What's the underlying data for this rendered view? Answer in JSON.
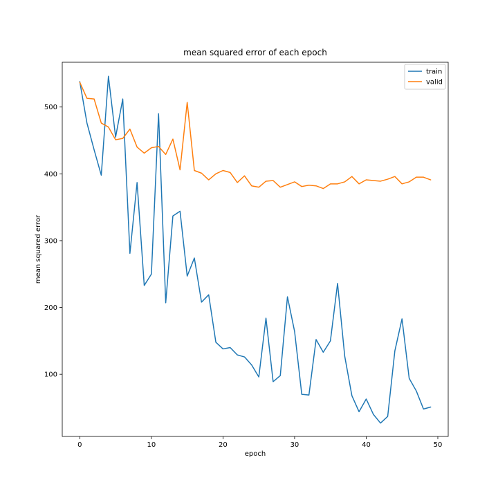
{
  "chart_data": {
    "type": "line",
    "title": "mean squared error of each epoch",
    "xlabel": "epoch",
    "ylabel": "mean squared error",
    "xlim": [
      -2.45,
      51.45
    ],
    "ylim": [
      7,
      567
    ],
    "xticks": [
      0,
      10,
      20,
      30,
      40,
      50
    ],
    "yticks": [
      100,
      200,
      300,
      400,
      500
    ],
    "grid": false,
    "legend_position": "top-right",
    "x": [
      0,
      1,
      2,
      3,
      4,
      5,
      6,
      7,
      8,
      9,
      10,
      11,
      12,
      13,
      14,
      15,
      16,
      17,
      18,
      19,
      20,
      21,
      22,
      23,
      24,
      25,
      26,
      27,
      28,
      29,
      30,
      31,
      32,
      33,
      34,
      35,
      36,
      37,
      38,
      39,
      40,
      41,
      42,
      43,
      44,
      45,
      46,
      47,
      48,
      49
    ],
    "series": [
      {
        "name": "train",
        "color": "#1f77b4",
        "values": [
          538,
          476,
          436,
          398,
          546,
          455,
          512,
          281,
          387,
          233,
          250,
          490,
          207,
          337,
          344,
          247,
          274,
          208,
          219,
          148,
          138,
          140,
          129,
          126,
          114,
          96,
          184,
          89,
          98,
          216,
          164,
          70,
          69,
          152,
          133,
          150,
          236,
          127,
          68,
          44,
          63,
          40,
          27,
          37,
          135,
          183,
          94,
          75,
          48,
          51
        ]
      },
      {
        "name": "valid",
        "color": "#ff7f0e",
        "values": [
          537,
          513,
          512,
          476,
          470,
          451,
          453,
          467,
          440,
          431,
          439,
          441,
          429,
          452,
          406,
          507,
          405,
          401,
          391,
          400,
          405,
          402,
          387,
          397,
          382,
          380,
          389,
          390,
          380,
          384,
          388,
          381,
          383,
          382,
          378,
          385,
          385,
          388,
          396,
          385,
          391,
          390,
          389,
          392,
          396,
          385,
          388,
          395,
          395,
          391
        ]
      }
    ]
  }
}
